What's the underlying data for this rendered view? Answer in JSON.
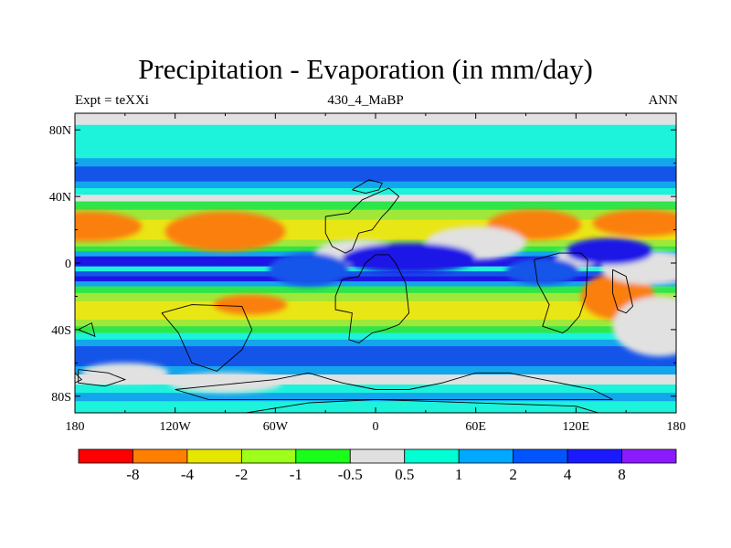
{
  "chart_data": {
    "type": "heatmap",
    "title": "Precipitation - Evaporation (in mm/day)",
    "subtitle_left": "Expt = teXXi",
    "subtitle_center": "430_4_MaBP",
    "subtitle_right": "ANN",
    "x_ticks": [
      "180",
      "120W",
      "60W",
      "0",
      "60E",
      "120E",
      "180"
    ],
    "x_tick_values": [
      -180,
      -120,
      -60,
      0,
      60,
      120,
      180
    ],
    "y_ticks": [
      "80N",
      "40N",
      "0",
      "40S",
      "80S"
    ],
    "y_tick_values": [
      80,
      40,
      0,
      -40,
      -80
    ],
    "xlim": [
      -180,
      180
    ],
    "ylim": [
      -90,
      90
    ],
    "levels": [
      "-8",
      "-4",
      "-2",
      "-1",
      "-0.5",
      "0.5",
      "1",
      "2",
      "4",
      "8"
    ],
    "level_values": [
      -8,
      -4,
      -2,
      -1,
      -0.5,
      0.5,
      1,
      2,
      4,
      8
    ],
    "colors": [
      "#ff0000",
      "#ff7f00",
      "#e6e600",
      "#9eff1a",
      "#1aff1a",
      "#e0e0e0",
      "#00ffd2",
      "#00a8ff",
      "#0055ff",
      "#1a1aff",
      "#8c1aff"
    ],
    "plot_colors": [
      "#f0201a",
      "#fa7f0f",
      "#e9e615",
      "#9fe83a",
      "#2ee64a",
      "#e1e1e1",
      "#1df2db",
      "#13a6ec",
      "#1454e9",
      "#1f14e6",
      "#8a1eeb"
    ],
    "zonal_profile": [
      {
        "lat": 90,
        "level": 5
      },
      {
        "lat": 87,
        "level": 5
      },
      {
        "lat": 83,
        "level": 6
      },
      {
        "lat": 79,
        "level": 6
      },
      {
        "lat": 73,
        "level": 6
      },
      {
        "lat": 68,
        "level": 6
      },
      {
        "lat": 63,
        "level": 7
      },
      {
        "lat": 58,
        "level": 8
      },
      {
        "lat": 54,
        "level": 8
      },
      {
        "lat": 49,
        "level": 7
      },
      {
        "lat": 45,
        "level": 6
      },
      {
        "lat": 41,
        "level": 5
      },
      {
        "lat": 37,
        "level": 4
      },
      {
        "lat": 32,
        "level": 3
      },
      {
        "lat": 26,
        "level": 2
      },
      {
        "lat": 20,
        "level": 2
      },
      {
        "lat": 14,
        "level": 3
      },
      {
        "lat": 10,
        "level": 4
      },
      {
        "lat": 7,
        "level": 7
      },
      {
        "lat": 4,
        "level": 9
      },
      {
        "lat": 1,
        "level": 9
      },
      {
        "lat": -2,
        "level": 6
      },
      {
        "lat": -5,
        "level": 8
      },
      {
        "lat": -8,
        "level": 9
      },
      {
        "lat": -11,
        "level": 7
      },
      {
        "lat": -14,
        "level": 4
      },
      {
        "lat": -18,
        "level": 3
      },
      {
        "lat": -23,
        "level": 2
      },
      {
        "lat": -29,
        "level": 2
      },
      {
        "lat": -34,
        "level": 3
      },
      {
        "lat": -38,
        "level": 4
      },
      {
        "lat": -42,
        "level": 6
      },
      {
        "lat": -46,
        "level": 7
      },
      {
        "lat": -50,
        "level": 8
      },
      {
        "lat": -56,
        "level": 8
      },
      {
        "lat": -62,
        "level": 7
      },
      {
        "lat": -67,
        "level": 5
      },
      {
        "lat": -73,
        "level": 6
      },
      {
        "lat": -78,
        "level": 7
      },
      {
        "lat": -83,
        "level": 6
      },
      {
        "lat": -90,
        "level": 6
      }
    ],
    "regions": [
      {
        "level": 1,
        "lon": -172,
        "lat": 22,
        "w": 32,
        "h": 9
      },
      {
        "level": 1,
        "lon": -90,
        "lat": 19,
        "w": 36,
        "h": 12
      },
      {
        "level": 1,
        "lon": 95,
        "lat": 23,
        "w": 28,
        "h": 9
      },
      {
        "level": 1,
        "lon": 160,
        "lat": 24,
        "w": 30,
        "h": 8
      },
      {
        "level": 1,
        "lon": -75,
        "lat": -25,
        "w": 22,
        "h": 6
      },
      {
        "level": 1,
        "lon": 145,
        "lat": -20,
        "w": 22,
        "h": 14
      },
      {
        "level": 5,
        "lon": 60,
        "lat": 12,
        "w": 30,
        "h": 10
      },
      {
        "level": 5,
        "lon": 122,
        "lat": 3,
        "w": 14,
        "h": 6
      },
      {
        "level": 5,
        "lon": 165,
        "lat": -3,
        "w": 30,
        "h": 10
      },
      {
        "level": 5,
        "lon": 170,
        "lat": -38,
        "w": 28,
        "h": 18
      },
      {
        "level": 5,
        "lon": -10,
        "lat": 6,
        "w": 26,
        "h": 8
      },
      {
        "level": 5,
        "lon": -150,
        "lat": -66,
        "w": 26,
        "h": 6
      },
      {
        "level": 5,
        "lon": -90,
        "lat": -72,
        "w": 34,
        "h": 6
      },
      {
        "level": 9,
        "lon": 20,
        "lat": 3,
        "w": 40,
        "h": 9
      },
      {
        "level": 9,
        "lon": 140,
        "lat": 7,
        "w": 26,
        "h": 8
      },
      {
        "level": 8,
        "lon": -40,
        "lat": -4,
        "w": 24,
        "h": 10
      },
      {
        "level": 8,
        "lon": 100,
        "lat": -5,
        "w": 22,
        "h": 8
      }
    ],
    "land_outlines": [
      [
        [
          -20,
          -10
        ],
        [
          -10,
          -8
        ],
        [
          -6,
          0
        ],
        [
          0,
          5
        ],
        [
          8,
          5
        ],
        [
          12,
          0
        ],
        [
          14,
          -4
        ],
        [
          18,
          -12
        ],
        [
          20,
          -30
        ],
        [
          14,
          -37
        ],
        [
          6,
          -40
        ],
        [
          -2,
          -42
        ],
        [
          -10,
          -48
        ],
        [
          -16,
          -46
        ],
        [
          -14,
          -30
        ],
        [
          -24,
          -28
        ],
        [
          -24,
          -20
        ],
        [
          -20,
          -10
        ]
      ],
      [
        [
          -30,
          28
        ],
        [
          -16,
          30
        ],
        [
          -8,
          38
        ],
        [
          8,
          45
        ],
        [
          14,
          40
        ],
        [
          8,
          32
        ],
        [
          4,
          28
        ],
        [
          -2,
          20
        ],
        [
          -10,
          18
        ],
        [
          -14,
          8
        ],
        [
          -18,
          6
        ],
        [
          -26,
          10
        ],
        [
          -30,
          18
        ],
        [
          -30,
          28
        ]
      ],
      [
        [
          -14,
          44
        ],
        [
          -4,
          50
        ],
        [
          4,
          48
        ],
        [
          2,
          44
        ],
        [
          -6,
          42
        ],
        [
          -14,
          44
        ]
      ],
      [
        [
          95,
          2
        ],
        [
          110,
          6
        ],
        [
          123,
          6
        ],
        [
          127,
          2
        ],
        [
          126,
          -20
        ],
        [
          122,
          -32
        ],
        [
          115,
          -40
        ],
        [
          112,
          -42
        ],
        [
          100,
          -38
        ],
        [
          104,
          -25
        ],
        [
          97,
          -12
        ],
        [
          95,
          2
        ]
      ],
      [
        [
          142,
          -4
        ],
        [
          150,
          -8
        ],
        [
          154,
          -26
        ],
        [
          150,
          -30
        ],
        [
          145,
          -28
        ],
        [
          142,
          -18
        ],
        [
          142,
          -4
        ]
      ],
      [
        [
          -128,
          -30
        ],
        [
          -118,
          -42
        ],
        [
          -110,
          -60
        ],
        [
          -95,
          -65
        ],
        [
          -80,
          -52
        ],
        [
          -74,
          -40
        ],
        [
          -80,
          -26
        ],
        [
          -110,
          -25
        ],
        [
          -128,
          -30
        ]
      ],
      [
        [
          -80,
          -72
        ],
        [
          -60,
          -70
        ],
        [
          -40,
          -66
        ],
        [
          -20,
          -72
        ],
        [
          0,
          -76
        ],
        [
          20,
          -76
        ],
        [
          40,
          -72
        ],
        [
          60,
          -66
        ],
        [
          80,
          -66
        ],
        [
          100,
          -70
        ],
        [
          130,
          -76
        ],
        [
          142,
          -82
        ],
        [
          -100,
          -82
        ],
        [
          -120,
          -76
        ],
        [
          -100,
          -74
        ],
        [
          -80,
          -72
        ]
      ],
      [
        [
          -110,
          -92
        ],
        [
          -90,
          -92
        ],
        [
          -40,
          -84
        ],
        [
          0,
          -82
        ],
        [
          60,
          -84
        ],
        [
          120,
          -86
        ],
        [
          140,
          -92
        ],
        [
          -110,
          -92
        ]
      ],
      [
        [
          -178,
          -64
        ],
        [
          -160,
          -66
        ],
        [
          -150,
          -70
        ],
        [
          -162,
          -74
        ],
        [
          -178,
          -72
        ],
        [
          -178,
          -64
        ]
      ],
      [
        [
          -180,
          -66
        ],
        [
          -176,
          -70
        ],
        [
          -180,
          -72
        ]
      ],
      [
        [
          -178,
          -40
        ],
        [
          -170,
          -36
        ],
        [
          -168,
          -44
        ],
        [
          -178,
          -40
        ]
      ]
    ]
  }
}
